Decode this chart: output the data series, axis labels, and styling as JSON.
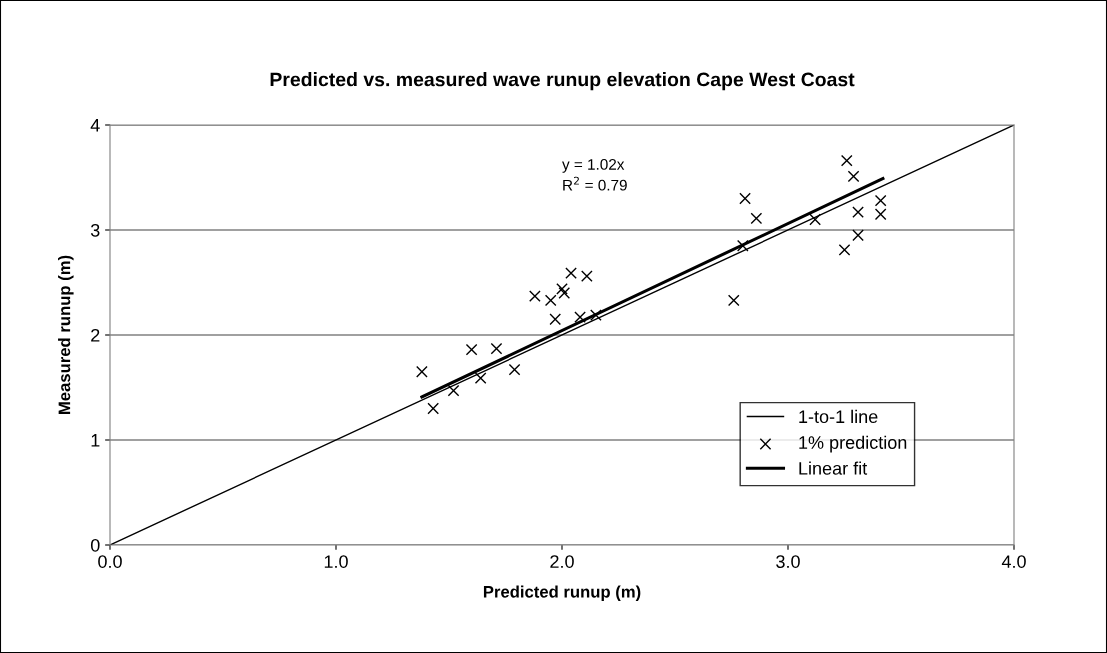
{
  "chart_data": {
    "type": "scatter",
    "title": "Predicted vs. measured wave runup elevation Cape West Coast",
    "xlabel": "Predicted runup (m)",
    "ylabel": "Measured runup (m)",
    "annotations": [
      "y = 1.02x\nR$^{2}$ = 0.79"
    ],
    "series": [
      {
        "name": "1-to-1 line",
        "type": "line",
        "color": "#000000",
        "x": [
          0,
          4
        ],
        "values": [
          0,
          4
        ],
        "marker": "none"
      },
      {
        "name": "1% prediction",
        "color": "#000000",
        "marker": "cross",
        "x": [
          1.38,
          1.43,
          1.52,
          1.6,
          1.64,
          1.71,
          1.79,
          1.88,
          1.95,
          1.97,
          2.0,
          2.01,
          2.04,
          2.08,
          2.11,
          2.15,
          2.76,
          2.8,
          2.81,
          2.86,
          3.12,
          3.25,
          3.26,
          3.29,
          3.31,
          3.31,
          3.41,
          3.41
        ],
        "values": [
          1.65,
          1.3,
          1.47,
          1.86,
          1.59,
          1.87,
          1.67,
          2.37,
          2.33,
          2.15,
          2.44,
          2.4,
          2.59,
          2.17,
          2.56,
          2.19,
          2.33,
          2.85,
          3.3,
          3.11,
          3.1,
          2.81,
          3.66,
          3.51,
          3.17,
          2.95,
          3.28,
          3.15
        ]
      },
      {
        "name": "Linear fit",
        "type": "line",
        "color": "#000000",
        "x": [
          1.38,
          3.42
        ],
        "values": [
          1.41,
          3.49
        ],
        "marker": "none"
      }
    ],
    "xlim": [
      0,
      4
    ],
    "ylim": [
      0,
      4
    ],
    "xticks": [
      {
        "value": 0,
        "label": "0.0"
      },
      {
        "value": 1,
        "label": "1.0"
      },
      {
        "value": 2,
        "label": "2.0"
      },
      {
        "value": 3,
        "label": "3.0"
      },
      {
        "value": 4,
        "label": "4.0"
      }
    ],
    "yticks": [
      0,
      1,
      2,
      3,
      4
    ],
    "grid": "y",
    "legend": "bottom right"
  }
}
